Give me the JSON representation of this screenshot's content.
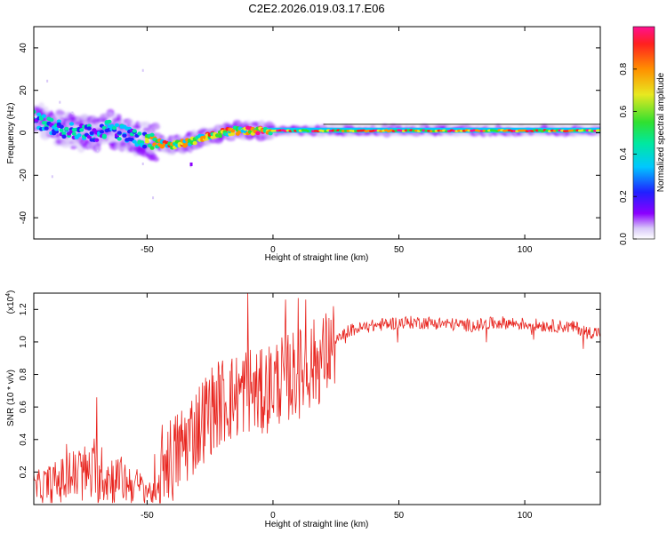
{
  "title": "C2E2.2026.019.03.17.E06",
  "chart_data": [
    {
      "type": "heatmap",
      "xlabel": "Height of straight line (km)",
      "ylabel": "Frequency (Hz)",
      "xlim": [
        -95,
        130
      ],
      "ylim": [
        -50,
        50
      ],
      "xticks": [
        -50,
        0,
        50,
        100
      ],
      "xtick_labels": [
        "-50",
        "0",
        "50",
        "100"
      ],
      "yticks": [
        -40,
        -20,
        0,
        20,
        40
      ],
      "ytick_labels": [
        "-40",
        "-20",
        "0",
        "20",
        "40"
      ],
      "colorbar": {
        "label": "Normalized spectral amplitude",
        "range": [
          0,
          1
        ],
        "ticks": [
          0.0,
          0.2,
          0.4,
          0.6,
          0.8
        ],
        "tick_labels": [
          "0.0",
          "0.2",
          "0.4",
          "0.6",
          "0.8"
        ],
        "colors": [
          "#ffffff",
          "#d8c8f8",
          "#8b00ff",
          "#2020ff",
          "#00c8ff",
          "#00e8a0",
          "#30e030",
          "#e8e820",
          "#ff9000",
          "#ff2020",
          "#ff1090"
        ]
      },
      "ridge": {
        "x": [
          -95,
          -90,
          -85,
          -80,
          -75,
          -70,
          -65,
          -60,
          -55,
          -50,
          -45,
          -40,
          -35,
          -30,
          -25,
          -20,
          -15,
          -10,
          -5,
          0,
          10,
          20,
          30,
          50,
          70,
          90,
          110,
          130
        ],
        "frequency": [
          7,
          4,
          2,
          1,
          0,
          0,
          2,
          0,
          -2,
          -4,
          -5,
          -6,
          -5,
          -3,
          -1,
          0,
          1,
          1,
          1,
          1,
          1,
          1,
          1,
          1,
          1,
          1,
          1,
          1
        ]
      }
    },
    {
      "type": "line",
      "xlabel": "Height of straight line (km)",
      "ylabel": "SNR (10 * v/v)",
      "y_multiplier": "(x10",
      "y_multiplier_exp": "4",
      "y_multiplier_close": ")",
      "xlim": [
        -95,
        130
      ],
      "ylim": [
        0,
        1.3
      ],
      "xticks": [
        -50,
        0,
        50,
        100
      ],
      "xtick_labels": [
        "-50",
        "0",
        "50",
        "100"
      ],
      "yticks": [
        0.2,
        0.4,
        0.6,
        0.8,
        1.0,
        1.2
      ],
      "ytick_labels": [
        "0.2",
        "0.4",
        "0.6",
        "0.8",
        "1.0",
        "1.2"
      ],
      "line_color": "#e8241e",
      "envelope": {
        "x": [
          -95,
          -85,
          -80,
          -75,
          -70,
          -60,
          -50,
          -46,
          -43,
          -40,
          -35,
          -30,
          -25,
          -20,
          -15,
          -10,
          -5,
          0,
          5,
          10,
          15,
          20,
          25,
          30,
          40,
          50,
          60,
          70,
          80,
          90,
          100,
          110,
          120,
          125,
          130
        ],
        "y": [
          0.1,
          0.14,
          0.17,
          0.19,
          0.18,
          0.15,
          0.09,
          0.05,
          0.3,
          0.27,
          0.38,
          0.48,
          0.58,
          0.64,
          0.66,
          0.72,
          0.67,
          0.75,
          0.78,
          0.8,
          0.86,
          0.9,
          1.0,
          1.07,
          1.1,
          1.12,
          1.12,
          1.11,
          1.1,
          1.12,
          1.11,
          1.1,
          1.09,
          1.06,
          1.06
        ]
      },
      "peaks": [
        {
          "x": -70,
          "y": 0.66
        },
        {
          "x": -10,
          "y": 1.3
        },
        {
          "x": 5,
          "y": 1.26
        },
        {
          "x": 10,
          "y": 1.27
        },
        {
          "x": 13,
          "y": 1.26
        }
      ]
    }
  ]
}
